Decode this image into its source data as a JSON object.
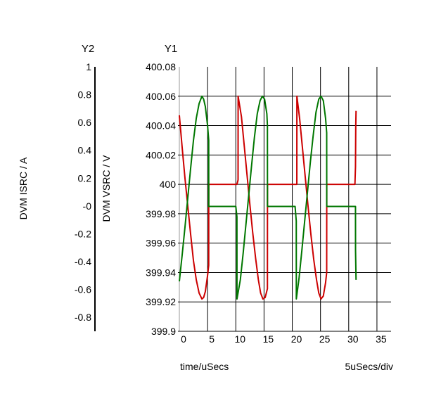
{
  "chart_data": {
    "type": "line",
    "xlabel": "time/uSecs",
    "x_units_label": "5uSecs/div",
    "xlim": [
      0,
      37.5
    ],
    "x_ticks": [
      0,
      5,
      10,
      15,
      20,
      25,
      30,
      35
    ],
    "y1": {
      "header": "Y1",
      "label": "DVM VSRC / V",
      "ylim": [
        399.9,
        400.08
      ],
      "ticks": [
        "399.9",
        "399.92",
        "399.94",
        "399.96",
        "399.98",
        "400",
        "400.02",
        "400.04",
        "400.06",
        "400.08"
      ]
    },
    "y2": {
      "header": "Y2",
      "label": "DVM ISRC / A",
      "ylim": [
        -0.9,
        1.0
      ],
      "ticks": [
        "-0.8",
        "-0.6",
        "-0.4",
        "-0.2",
        "-0",
        "0.2",
        "0.4",
        "0.6",
        "0.8",
        "1"
      ]
    },
    "grid": true,
    "series": [
      {
        "color": "#cc0000",
        "axis": "y1",
        "x": [
          0,
          0.5,
          1,
          1.5,
          2,
          2.5,
          3,
          3.5,
          4,
          4.3,
          4.6,
          5,
          5.2,
          5.21,
          10.2,
          10.4,
          10.41,
          11,
          11.5,
          12,
          12.5,
          13,
          13.5,
          14,
          14.4,
          14.8,
          15.2,
          15.6,
          15.61,
          20.5,
          20.81,
          20.82,
          21.3,
          21.8,
          22.3,
          22.8,
          23.3,
          23.8,
          24.3,
          24.7,
          25.1,
          25.5,
          25.9,
          26.1,
          26.11,
          31.1,
          31.2,
          31.25,
          31.3
        ],
        "y": [
          400.047,
          400.025,
          400.004,
          399.985,
          399.966,
          399.948,
          399.935,
          399.926,
          399.922,
          399.923,
          399.927,
          399.938,
          399.945,
          400,
          400,
          400.003,
          400.06,
          400.046,
          400.026,
          400.006,
          399.986,
          399.967,
          399.95,
          399.935,
          399.926,
          399.922,
          399.923,
          399.929,
          400,
          400,
          400,
          400.06,
          400.045,
          400.025,
          400.005,
          399.985,
          399.966,
          399.949,
          399.935,
          399.926,
          399.922,
          399.924,
          399.933,
          399.94,
          400,
          400,
          400.012,
          400.04,
          400.05
        ]
      },
      {
        "color": "#007700",
        "axis": "y1",
        "x": [
          0,
          0.5,
          1,
          1.5,
          2,
          2.5,
          3,
          3.5,
          4,
          4.3,
          4.6,
          5,
          5.2,
          5.21,
          10.0,
          10.2,
          10.21,
          10.8,
          11.3,
          11.8,
          12.3,
          12.8,
          13.3,
          13.8,
          14.3,
          14.7,
          15.1,
          15.5,
          15.6,
          15.61,
          20.5,
          20.71,
          20.72,
          21.2,
          21.7,
          22.2,
          22.7,
          23.2,
          23.7,
          24.2,
          24.7,
          25.1,
          25.5,
          25.9,
          26.1,
          26.11,
          31.2,
          31.21,
          31.3
        ],
        "y": [
          399.934,
          399.952,
          399.971,
          399.991,
          400.011,
          400.03,
          400.045,
          400.055,
          400.06,
          400.058,
          400.053,
          400.04,
          400.03,
          399.985,
          399.985,
          399.978,
          399.922,
          399.935,
          399.953,
          399.973,
          399.993,
          400.013,
          400.032,
          400.048,
          400.057,
          400.06,
          400.058,
          400.048,
          400.04,
          399.985,
          399.985,
          399.975,
          399.922,
          399.936,
          399.955,
          399.975,
          399.995,
          400.015,
          400.033,
          400.049,
          400.058,
          400.06,
          400.057,
          400.045,
          400.035,
          399.985,
          399.985,
          399.955,
          399.935
        ]
      }
    ]
  }
}
